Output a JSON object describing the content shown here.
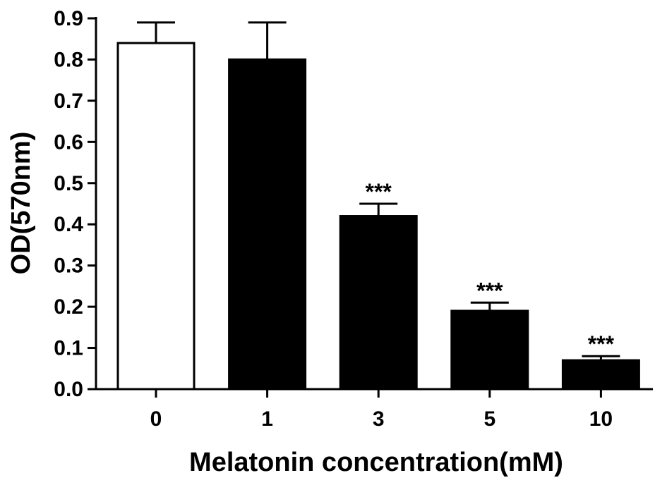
{
  "chart_data": {
    "type": "bar",
    "title": "",
    "xlabel": "Melatonin concentration(mM)",
    "ylabel": "OD(570nm)",
    "ylim": [
      0,
      0.9
    ],
    "y_ticks": [
      "0.0",
      "0.1",
      "0.2",
      "0.3",
      "0.4",
      "0.5",
      "0.6",
      "0.7",
      "0.8",
      "0.9"
    ],
    "grid": false,
    "legend": "none",
    "categories": [
      "0",
      "1",
      "3",
      "5",
      "10"
    ],
    "values": [
      0.84,
      0.8,
      0.42,
      0.19,
      0.07
    ],
    "error_upper": [
      0.05,
      0.09,
      0.03,
      0.02,
      0.01
    ],
    "significance": [
      "",
      "",
      "***",
      "***",
      "***"
    ],
    "bar_fills": [
      "#ffffff",
      "#000000",
      "#000000",
      "#000000",
      "#000000"
    ],
    "colors": {
      "axis": "#000000",
      "bar_stroke": "#000000"
    }
  }
}
